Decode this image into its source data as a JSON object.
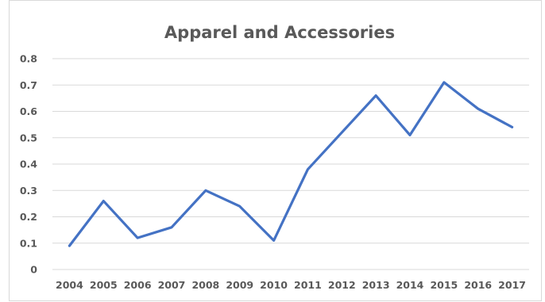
{
  "chart_data": {
    "type": "line",
    "title": "Apparel and Accessories",
    "xlabel": "",
    "ylabel": "",
    "categories": [
      "2004",
      "2005",
      "2006",
      "2007",
      "2008",
      "2009",
      "2010",
      "2011",
      "2012",
      "2013",
      "2014",
      "2015",
      "2016",
      "2017"
    ],
    "series": [
      {
        "values": [
          0.09,
          0.26,
          0.12,
          0.16,
          0.3,
          0.24,
          0.11,
          0.38,
          0.52,
          0.66,
          0.51,
          0.71,
          0.61,
          0.54
        ]
      }
    ],
    "ylim": [
      0,
      0.8
    ],
    "yticks": [
      "0",
      "0.1",
      "0.2",
      "0.3",
      "0.4",
      "0.5",
      "0.6",
      "0.7",
      "0.8"
    ],
    "grid": true,
    "legend": "none",
    "colors": {
      "series": "#4472c4",
      "grid": "#d9d9d9",
      "text": "#595959"
    }
  }
}
